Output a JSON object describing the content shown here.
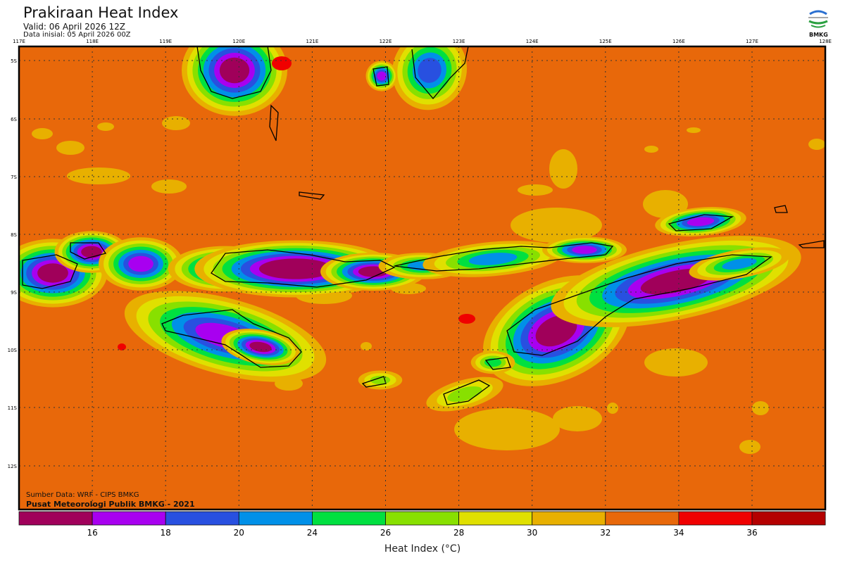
{
  "header": {
    "title": "Prakiraan Heat Index",
    "valid": "Valid: 06 April 2026 12Z",
    "initial": "Data inisial: 05 April 2026 00Z"
  },
  "logo": {
    "text": "BMKG"
  },
  "map": {
    "lon_labels": [
      "117E",
      "118E",
      "119E",
      "120E",
      "121E",
      "122E",
      "123E",
      "124E",
      "125E",
      "126E",
      "127E",
      "128E"
    ],
    "lat_labels": [
      "5S",
      "6S",
      "7S",
      "8S",
      "9S",
      "10S",
      "11S",
      "12S"
    ],
    "background_color": "#e8680a"
  },
  "footer": {
    "source": "Sumber Data: WRF - CIPS BMKG",
    "credit": "Pusat Meteorologi Publik BMKG - 2021"
  },
  "colorbar": {
    "label": "Heat Index (°C)",
    "ticks": [
      "16",
      "18",
      "20",
      "24",
      "26",
      "28",
      "30",
      "32",
      "34",
      "36"
    ],
    "colors": [
      "#a0005a",
      "#a800f0",
      "#2850e0",
      "#0090e8",
      "#00e040",
      "#88e000",
      "#e0e000",
      "#e8b000",
      "#e8680a",
      "#f00000",
      "#b40000"
    ]
  }
}
